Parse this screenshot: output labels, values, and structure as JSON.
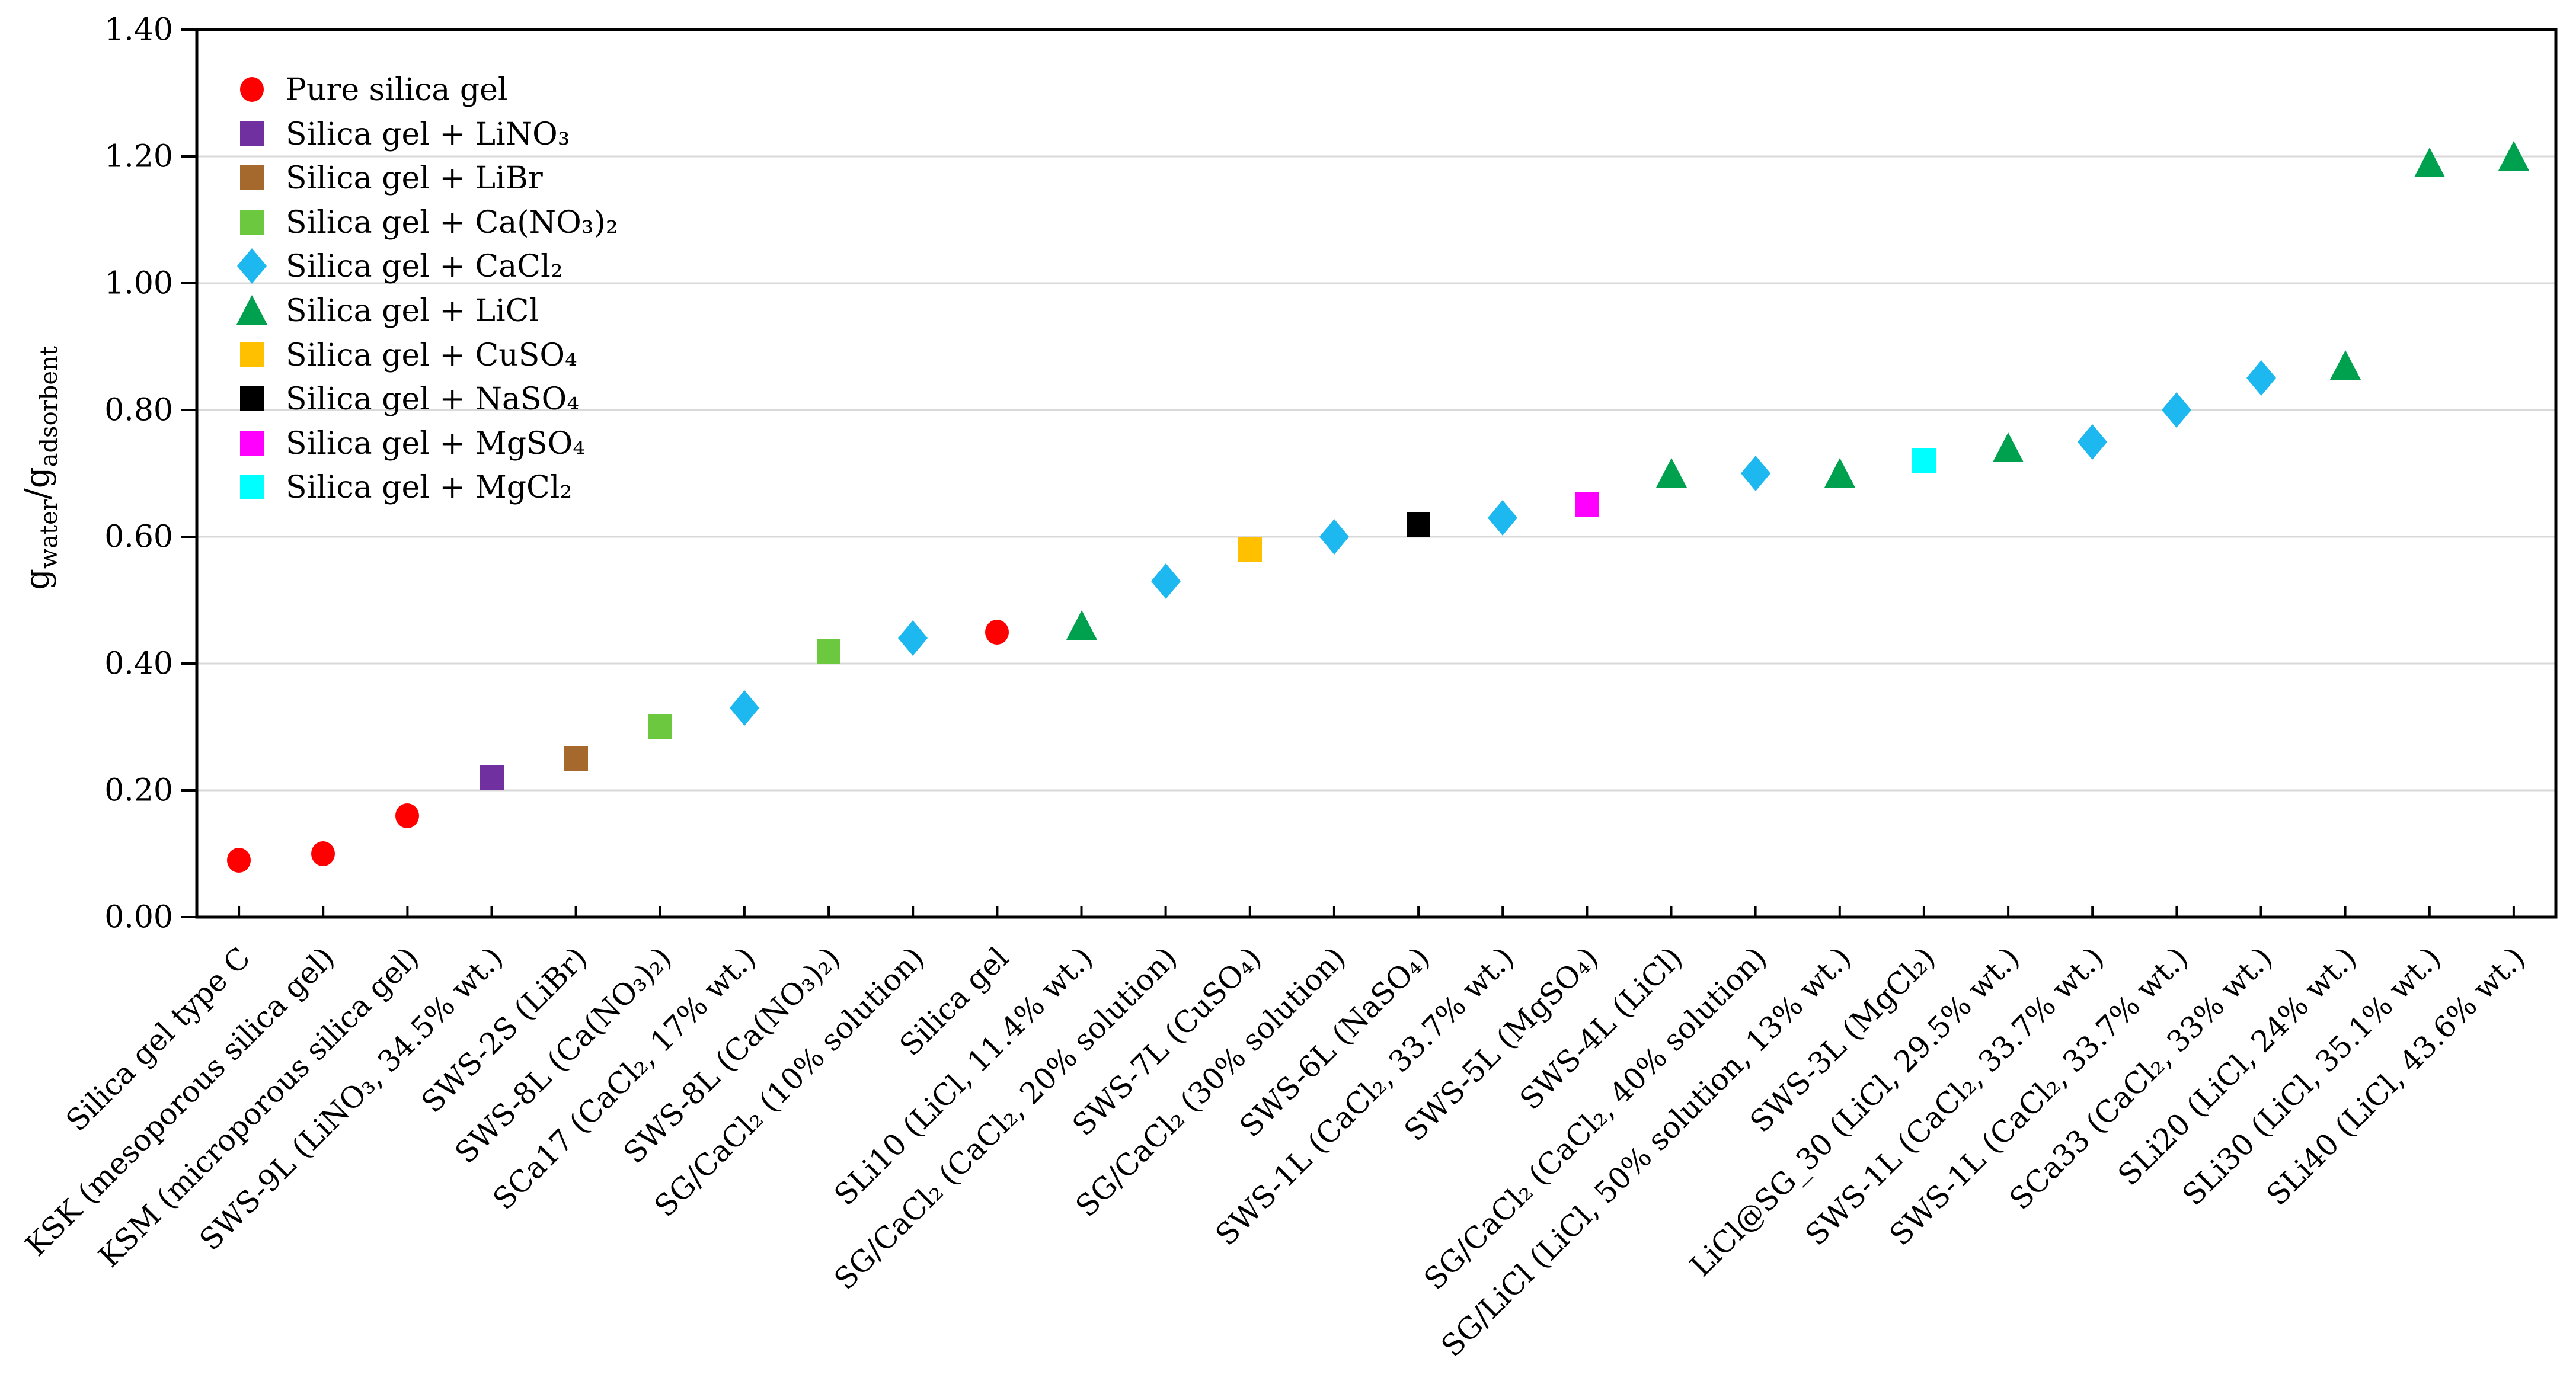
{
  "chart_data": {
    "type": "scatter",
    "title": "",
    "xlabel": "",
    "ylabel_parts": [
      {
        "text": "g",
        "sub": false
      },
      {
        "text": "water",
        "sub": true
      },
      {
        "text": "/g",
        "sub": false
      },
      {
        "text": "adsorbent",
        "sub": true
      }
    ],
    "ylim": [
      0.0,
      1.4
    ],
    "ytick_step": 0.2,
    "ytick_labels": [
      "0.00",
      "0.20",
      "0.40",
      "0.60",
      "0.80",
      "1.00",
      "1.20",
      "1.40"
    ],
    "grid": true,
    "gridline_color": "#D9D9D9",
    "axis_color": "#000000",
    "background_color": "#FFFFFF",
    "legend_position": "top-left-inside",
    "legend_order": [
      "pure",
      "lino3",
      "libr",
      "cano3",
      "cacl2",
      "licl",
      "cuso4",
      "naso4",
      "mgso4",
      "mgcl2"
    ],
    "groups": {
      "pure": {
        "legend_label": "Pure silica gel",
        "marker": "circle",
        "color": "#FF0000"
      },
      "lino3": {
        "legend_label": "Silica gel + LiNO₃",
        "marker": "square",
        "color": "#7030A0"
      },
      "libr": {
        "legend_label": "Silica gel + LiBr",
        "marker": "square",
        "color": "#A5692E"
      },
      "cano3": {
        "legend_label": "Silica gel + Ca(NO₃)₂",
        "marker": "square",
        "color": "#6BC83F"
      },
      "cacl2": {
        "legend_label": "Silica gel + CaCl₂",
        "marker": "diamond",
        "color": "#1EB8F0"
      },
      "licl": {
        "legend_label": "Silica gel + LiCl",
        "marker": "triangle",
        "color": "#00A14E"
      },
      "cuso4": {
        "legend_label": "Silica gel + CuSO₄",
        "marker": "square",
        "color": "#FFC000"
      },
      "naso4": {
        "legend_label": "Silica gel + NaSO₄",
        "marker": "square",
        "color": "#000000"
      },
      "mgso4": {
        "legend_label": "Silica gel + MgSO₄",
        "marker": "square",
        "color": "#FF00FF"
      },
      "mgcl2": {
        "legend_label": "Silica gel + MgCl₂",
        "marker": "square",
        "color": "#00FFFF"
      }
    },
    "points": [
      {
        "label": "Silica gel type C",
        "group": "pure",
        "value": 0.09
      },
      {
        "label": "KSK (mesoporous silica gel)",
        "group": "pure",
        "value": 0.1
      },
      {
        "label": "KSM (microporous silica gel)",
        "group": "pure",
        "value": 0.16
      },
      {
        "label": "SWS-9L (LiNO₃, 34.5% wt.)",
        "group": "lino3",
        "value": 0.22
      },
      {
        "label": "SWS-2S (LiBr)",
        "group": "libr",
        "value": 0.25
      },
      {
        "label": "SWS-8L (Ca(NO₃)₂)",
        "group": "cano3",
        "value": 0.3
      },
      {
        "label": "SCa17 (CaCl₂, 17% wt.)",
        "group": "cacl2",
        "value": 0.33
      },
      {
        "label": "SWS-8L (Ca(NO₃)₂)",
        "group": "cano3",
        "value": 0.42
      },
      {
        "label": "SG/CaCl₂ (10% solution)",
        "group": "cacl2",
        "value": 0.44
      },
      {
        "label": "Silica gel",
        "group": "pure",
        "value": 0.45
      },
      {
        "label": "SLi10 (LiCl, 11.4% wt.)",
        "group": "licl",
        "value": 0.46
      },
      {
        "label": "SG/CaCl₂ (CaCl₂, 20% solution)",
        "group": "cacl2",
        "value": 0.53
      },
      {
        "label": "SWS-7L (CuSO₄)",
        "group": "cuso4",
        "value": 0.58
      },
      {
        "label": "SG/CaCl₂ (30% solution)",
        "group": "cacl2",
        "value": 0.6
      },
      {
        "label": "SWS-6L (NaSO₄)",
        "group": "naso4",
        "value": 0.62
      },
      {
        "label": "SWS-1L (CaCl₂, 33.7% wt.)",
        "group": "cacl2",
        "value": 0.63
      },
      {
        "label": "SWS-5L (MgSO₄)",
        "group": "mgso4",
        "value": 0.65
      },
      {
        "label": "SWS-4L (LiCl)",
        "group": "licl",
        "value": 0.7
      },
      {
        "label": "SG/CaCl₂ (CaCl₂, 40% solution)",
        "group": "cacl2",
        "value": 0.7
      },
      {
        "label": "SG/LiCl (LiCl, 50% solution, 13% wt.)",
        "group": "licl",
        "value": 0.7
      },
      {
        "label": "SWS-3L (MgCl₂)",
        "group": "mgcl2",
        "value": 0.72
      },
      {
        "label": "LiCl@SG_30 (LiCl, 29.5% wt.)",
        "group": "licl",
        "value": 0.74
      },
      {
        "label": "SWS-1L (CaCl₂, 33.7% wt.)",
        "group": "cacl2",
        "value": 0.75
      },
      {
        "label": "SWS-1L (CaCl₂, 33.7% wt.)",
        "group": "cacl2",
        "value": 0.8
      },
      {
        "label": "SCa33 (CaCl₂, 33% wt.)",
        "group": "cacl2",
        "value": 0.85
      },
      {
        "label": "SLi20 (LiCl, 24% wt.)",
        "group": "licl",
        "value": 0.87
      },
      {
        "label": "SLi30 (LiCl, 35.1% wt.)",
        "group": "licl",
        "value": 1.19
      },
      {
        "label": "SLi40 (LiCl, 43.6% wt.)",
        "group": "licl",
        "value": 1.2
      }
    ]
  }
}
